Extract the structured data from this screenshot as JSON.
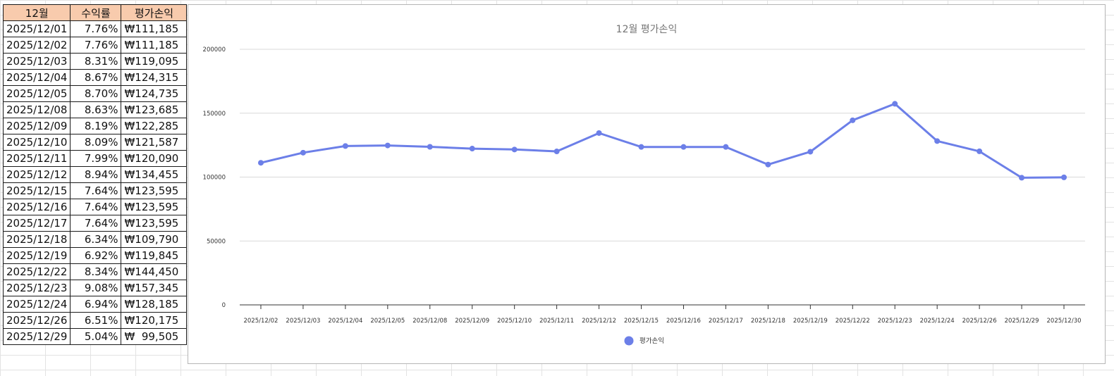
{
  "table": {
    "headers": [
      "12월",
      "수익률",
      "평가손익"
    ],
    "rows": [
      [
        "2025/12/01",
        "7.76%",
        "₩111,185"
      ],
      [
        "2025/12/02",
        "7.76%",
        "₩111,185"
      ],
      [
        "2025/12/03",
        "8.31%",
        "₩119,095"
      ],
      [
        "2025/12/04",
        "8.67%",
        "₩124,315"
      ],
      [
        "2025/12/05",
        "8.70%",
        "₩124,735"
      ],
      [
        "2025/12/08",
        "8.63%",
        "₩123,685"
      ],
      [
        "2025/12/09",
        "8.19%",
        "₩122,285"
      ],
      [
        "2025/12/10",
        "8.09%",
        "₩121,587"
      ],
      [
        "2025/12/11",
        "7.99%",
        "₩120,090"
      ],
      [
        "2025/12/12",
        "8.94%",
        "₩134,455"
      ],
      [
        "2025/12/15",
        "7.64%",
        "₩123,595"
      ],
      [
        "2025/12/16",
        "7.64%",
        "₩123,595"
      ],
      [
        "2025/12/17",
        "7.64%",
        "₩123,595"
      ],
      [
        "2025/12/18",
        "6.34%",
        "₩109,790"
      ],
      [
        "2025/12/19",
        "6.92%",
        "₩119,845"
      ],
      [
        "2025/12/22",
        "8.34%",
        "₩144,450"
      ],
      [
        "2025/12/23",
        "9.08%",
        "₩157,345"
      ],
      [
        "2025/12/24",
        "6.94%",
        "₩128,185"
      ],
      [
        "2025/12/26",
        "6.51%",
        "₩120,175"
      ],
      [
        "2025/12/29",
        "5.04%",
        "₩  99,505"
      ]
    ]
  },
  "chart_data": {
    "type": "line",
    "title": "12월 평가손익",
    "x": [
      "2025/12/02",
      "2025/12/03",
      "2025/12/04",
      "2025/12/05",
      "2025/12/08",
      "2025/12/09",
      "2025/12/10",
      "2025/12/11",
      "2025/12/12",
      "2025/12/15",
      "2025/12/16",
      "2025/12/17",
      "2025/12/18",
      "2025/12/19",
      "2025/12/22",
      "2025/12/23",
      "2025/12/24",
      "2025/12/26",
      "2025/12/29",
      "2025/12/30"
    ],
    "series": [
      {
        "name": "평가손익",
        "values": [
          111185,
          119095,
          124315,
          124735,
          123685,
          122285,
          121587,
          120090,
          134455,
          123595,
          123595,
          123595,
          109790,
          119845,
          144450,
          157345,
          128185,
          120175,
          99505,
          99800
        ]
      }
    ],
    "ylim": [
      0,
      200000
    ],
    "yticks": [
      "0",
      "50000",
      "100000",
      "150000",
      "200000"
    ],
    "grid": true,
    "legend": "bottom",
    "color": "#6c7fe8"
  }
}
